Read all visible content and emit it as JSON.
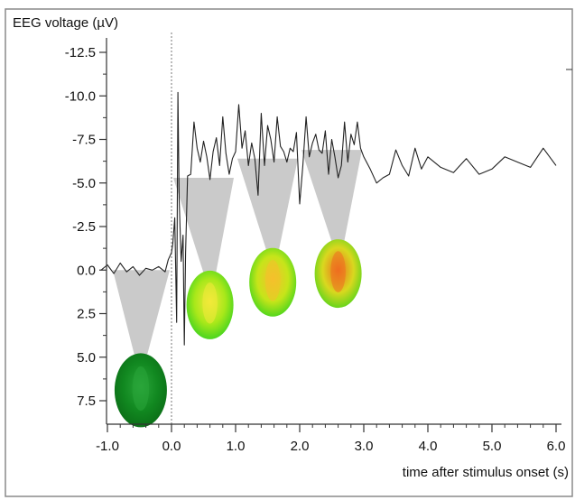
{
  "chart_data": {
    "type": "line",
    "title": "",
    "ylabel": "EEG voltage (µV)",
    "xlabel": "time after stimulus onset (s)",
    "xlim": [
      -1.1,
      6.05
    ],
    "ylim": [
      -13.2,
      8.6
    ],
    "y_inverted": true,
    "grid": false,
    "legend": "none",
    "x_ticks": [
      -1.0,
      0.0,
      1.0,
      2.0,
      3.0,
      4.0,
      5.0,
      6.0
    ],
    "x_tick_labels": [
      "-1.0",
      "0.0",
      "1.0",
      "2.0",
      "3.0",
      "4.0",
      "5.0",
      "6.0"
    ],
    "y_ticks": [
      -12.5,
      -10.0,
      -7.5,
      -5.0,
      -2.5,
      0.0,
      2.5,
      5.0,
      7.5
    ],
    "y_tick_labels": [
      "-12.5",
      "-10.0",
      "-7.5",
      "-5.0",
      "-2.5",
      "0.0",
      "2.5",
      "5.0",
      "7.5"
    ],
    "stimulus_onset_x": 0.0,
    "series": [
      {
        "color": "#222222",
        "x": [
          -1.1,
          -1.0,
          -0.9,
          -0.8,
          -0.7,
          -0.6,
          -0.5,
          -0.4,
          -0.3,
          -0.2,
          -0.1,
          -0.05,
          0.0,
          0.02,
          0.05,
          0.08,
          0.1,
          0.12,
          0.15,
          0.18,
          0.2,
          0.22,
          0.25,
          0.3,
          0.35,
          0.4,
          0.45,
          0.5,
          0.55,
          0.6,
          0.65,
          0.7,
          0.75,
          0.8,
          0.85,
          0.9,
          0.95,
          1.0,
          1.05,
          1.1,
          1.15,
          1.2,
          1.25,
          1.3,
          1.35,
          1.4,
          1.45,
          1.5,
          1.55,
          1.6,
          1.65,
          1.7,
          1.75,
          1.8,
          1.85,
          1.9,
          1.95,
          2.0,
          2.05,
          2.1,
          2.15,
          2.2,
          2.25,
          2.3,
          2.35,
          2.4,
          2.45,
          2.5,
          2.55,
          2.6,
          2.65,
          2.7,
          2.75,
          2.8,
          2.85,
          2.9,
          2.95,
          3.0,
          3.1,
          3.2,
          3.3,
          3.4,
          3.5,
          3.6,
          3.7,
          3.8,
          3.9,
          4.0,
          4.2,
          4.4,
          4.6,
          4.8,
          5.0,
          5.2,
          5.4,
          5.6,
          5.8,
          6.0
        ],
        "y": [
          0.0,
          -0.3,
          0.2,
          -0.4,
          0.1,
          -0.2,
          0.3,
          -0.1,
          0.0,
          -0.2,
          0.1,
          -0.6,
          -1.0,
          -1.5,
          -3.0,
          3.0,
          -10.2,
          -4.0,
          -0.5,
          -2.0,
          4.3,
          -1.0,
          -5.4,
          -5.5,
          -8.5,
          -7.0,
          -6.2,
          -7.4,
          -6.5,
          -5.2,
          -6.8,
          -7.6,
          -6.0,
          -8.8,
          -6.7,
          -5.5,
          -6.4,
          -6.8,
          -9.5,
          -7.0,
          -8.0,
          -6.0,
          -7.3,
          -6.4,
          -4.3,
          -9.0,
          -6.0,
          -8.3,
          -7.5,
          -6.2,
          -8.8,
          -7.1,
          -6.8,
          -6.2,
          -7.0,
          -6.8,
          -7.9,
          -3.8,
          -6.0,
          -8.8,
          -6.5,
          -7.3,
          -7.8,
          -6.9,
          -6.7,
          -8.0,
          -5.5,
          -7.5,
          -6.5,
          -5.3,
          -6.0,
          -8.5,
          -6.2,
          -7.8,
          -7.2,
          -8.5,
          -7.0,
          -6.5,
          -5.8,
          -5.0,
          -5.3,
          -5.5,
          -6.9,
          -6.0,
          -5.4,
          -7.0,
          -5.8,
          -6.5,
          -5.9,
          -5.6,
          -6.4,
          -5.5,
          -5.8,
          -6.5,
          -6.2,
          -5.9,
          -7.0,
          -6.0
        ]
      }
    ],
    "topomaps": [
      {
        "name": "topomap-baseline",
        "window_x": [
          -1.0,
          0.0
        ],
        "anchor_y": 0.0,
        "center_x": -0.48,
        "center_y": 6.9,
        "colors": [
          "#0b6b16",
          "#118820",
          "#2aa53a"
        ]
      },
      {
        "name": "topomap-window-1",
        "window_x": [
          0.0,
          1.0
        ],
        "anchor_y": -5.3,
        "center_x": 0.6,
        "center_y": 2.0,
        "colors": [
          "#36d11f",
          "#a8e81a",
          "#f3e93a"
        ]
      },
      {
        "name": "topomap-window-2",
        "window_x": [
          1.0,
          2.0
        ],
        "anchor_y": -6.4,
        "center_x": 1.58,
        "center_y": 0.7,
        "colors": [
          "#3bd41c",
          "#c6e51a",
          "#f5c02c"
        ]
      },
      {
        "name": "topomap-window-3",
        "window_x": [
          2.0,
          3.0
        ],
        "anchor_y": -6.9,
        "center_x": 2.6,
        "center_y": 0.2,
        "colors": [
          "#4fd41b",
          "#d9d81f",
          "#ef6d1f"
        ]
      }
    ]
  }
}
